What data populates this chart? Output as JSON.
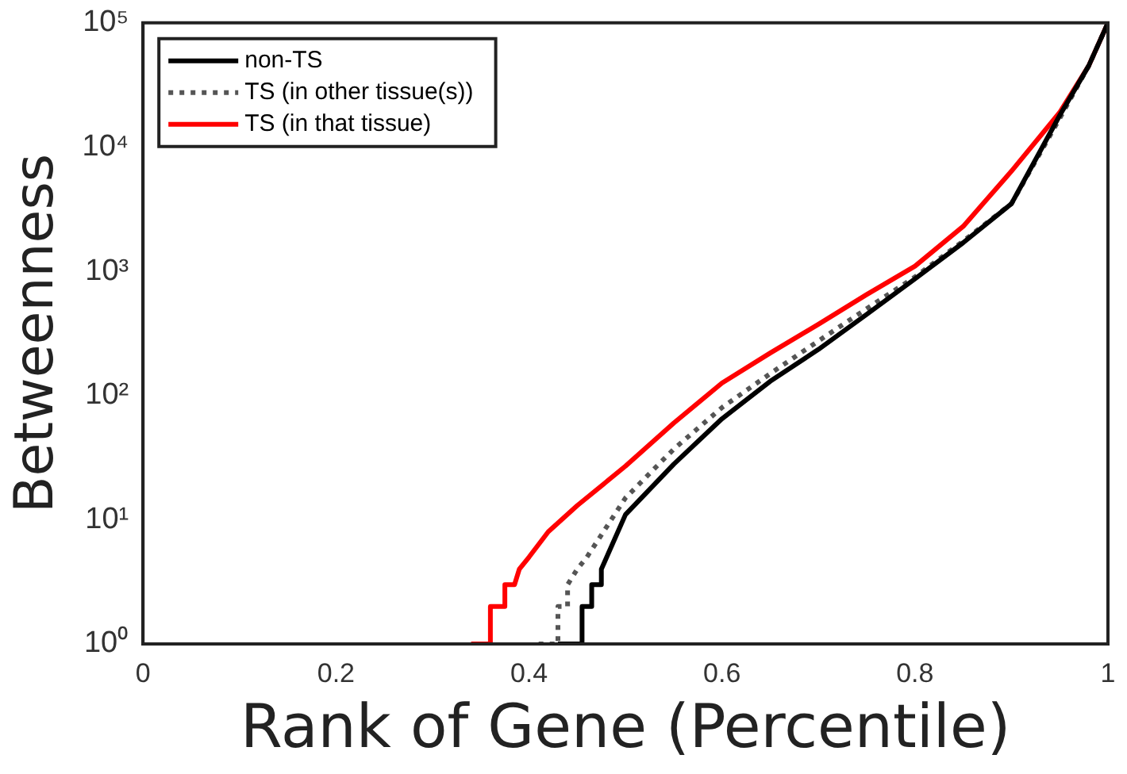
{
  "chart_data": {
    "type": "line",
    "xlabel": "Rank of Gene (Percentile)",
    "ylabel": "Betweenness",
    "log": "y",
    "grid": false,
    "legend": "top left",
    "marker": "none",
    "xlim": [
      0,
      1
    ],
    "xticks": [
      0,
      0.2,
      0.4,
      0.6,
      0.8,
      1
    ],
    "ylim": [
      1,
      100000
    ],
    "yticks": [
      {
        "value": 1,
        "label": "10⁰"
      },
      {
        "value": 10,
        "label": "10¹"
      },
      {
        "value": 100,
        "label": "10²"
      },
      {
        "value": 1000,
        "label": "10³"
      },
      {
        "value": 10000,
        "label": "10⁴"
      },
      {
        "value": 100000,
        "label": "10⁵"
      }
    ],
    "series": [
      {
        "name": "non-TS",
        "color": "#000000",
        "line_style": "solid",
        "x": [
          0.43,
          0.455,
          0.455,
          0.465,
          0.465,
          0.475,
          0.475,
          0.5,
          0.55,
          0.6,
          0.65,
          0.7,
          0.75,
          0.8,
          0.85,
          0.9,
          0.95,
          0.98,
          1
        ],
        "values": [
          1,
          1,
          2,
          2,
          3,
          3,
          4,
          11,
          28,
          65,
          130,
          235,
          450,
          870,
          1700,
          3500,
          18000,
          45000,
          100000
        ]
      },
      {
        "name": "TS (in other tissue(s))",
        "color": "#555555",
        "line_style": "dotted",
        "x": [
          0.41,
          0.43,
          0.43,
          0.44,
          0.44,
          0.45,
          0.46,
          0.5,
          0.55,
          0.6,
          0.65,
          0.7,
          0.75,
          0.8,
          0.85,
          0.9,
          0.95,
          0.98,
          1
        ],
        "values": [
          1,
          1,
          2,
          2,
          3,
          4,
          5,
          15,
          37,
          80,
          150,
          275,
          500,
          900,
          1750,
          3500,
          17000,
          45000,
          100000
        ]
      },
      {
        "name": "TS (in that tissue)",
        "color": "#ff0000",
        "line_style": "solid",
        "x": [
          0.34,
          0.36,
          0.36,
          0.375,
          0.375,
          0.385,
          0.39,
          0.4,
          0.42,
          0.45,
          0.5,
          0.55,
          0.6,
          0.65,
          0.7,
          0.75,
          0.8,
          0.85,
          0.9,
          0.95,
          0.98,
          1
        ],
        "values": [
          1,
          1,
          2,
          2,
          3,
          3,
          4,
          5,
          8,
          13,
          27,
          60,
          126,
          220,
          375,
          650,
          1100,
          2300,
          6400,
          19000,
          45000,
          100000
        ]
      }
    ]
  }
}
